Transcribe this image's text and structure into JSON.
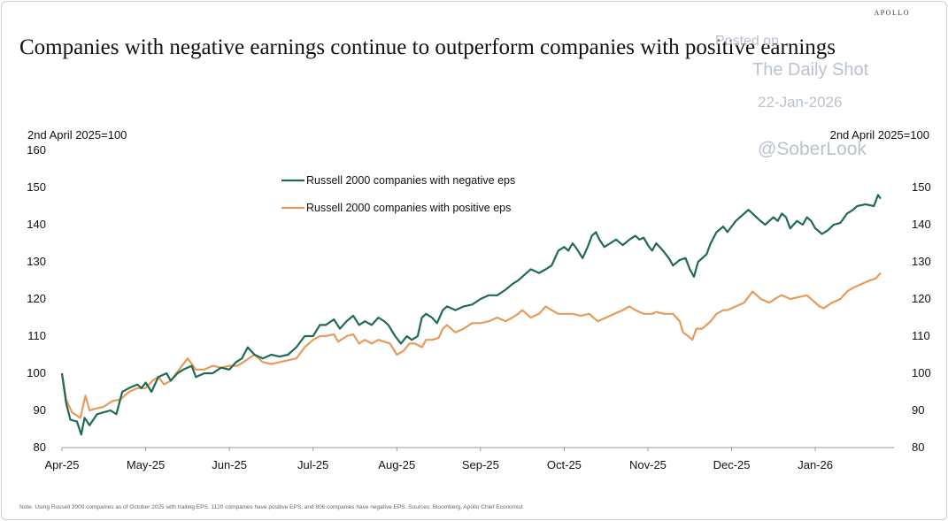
{
  "brand": "APOLLO",
  "title": "Companies with negative earnings continue to outperform companies with positive earnings",
  "watermark": {
    "line1": "Posted on",
    "line2": "The Daily Shot",
    "line3": "22-Jan-2026",
    "line4": "@SoberLook"
  },
  "note": "Note: Using Russell 2000 companies as of October 2025 with trailing EPS. 1120 companies have positive EPS, and 806 companies have negative EPS. Sources: Bloomberg, Apollo Chief Economist",
  "colors": {
    "negative": "#1e6b52",
    "positive": "#e79a5a",
    "axis": "#999999"
  },
  "chart_data": {
    "type": "line",
    "title": "Companies with negative earnings continue to outperform companies with positive earnings",
    "ylabel_left": "2nd April 2025=100",
    "ylabel_right": "2nd April 2025=100",
    "ylim": [
      80,
      160
    ],
    "yticks": [
      80,
      90,
      100,
      110,
      120,
      130,
      140,
      150,
      160
    ],
    "y2ticks": [
      80,
      90,
      100,
      110,
      120,
      130,
      140,
      150
    ],
    "xlim": [
      0,
      9.94
    ],
    "xticks": [
      {
        "label": "Apr-25",
        "pos": 0
      },
      {
        "label": "May-25",
        "pos": 1
      },
      {
        "label": "Jun-25",
        "pos": 2
      },
      {
        "label": "Jul-25",
        "pos": 3
      },
      {
        "label": "Aug-25",
        "pos": 4
      },
      {
        "label": "Sep-25",
        "pos": 5
      },
      {
        "label": "Oct-25",
        "pos": 6
      },
      {
        "label": "Nov-25",
        "pos": 7
      },
      {
        "label": "Dec-25",
        "pos": 8
      },
      {
        "label": "Jan-26",
        "pos": 9
      }
    ],
    "legend_position": "top-center",
    "series": [
      {
        "name": "Russell 2000 companies with negative eps",
        "color": "#1e6b52",
        "points": [
          [
            0,
            100
          ],
          [
            0.05,
            92
          ],
          [
            0.1,
            87.5
          ],
          [
            0.18,
            87
          ],
          [
            0.23,
            83.5
          ],
          [
            0.27,
            88
          ],
          [
            0.33,
            86
          ],
          [
            0.42,
            89
          ],
          [
            0.5,
            89.5
          ],
          [
            0.58,
            90
          ],
          [
            0.65,
            89
          ],
          [
            0.72,
            95
          ],
          [
            0.8,
            96
          ],
          [
            0.9,
            97
          ],
          [
            0.95,
            96
          ],
          [
            1.0,
            97.5
          ],
          [
            1.07,
            95
          ],
          [
            1.15,
            99
          ],
          [
            1.25,
            100
          ],
          [
            1.3,
            98
          ],
          [
            1.38,
            100
          ],
          [
            1.45,
            101
          ],
          [
            1.55,
            102
          ],
          [
            1.6,
            99
          ],
          [
            1.7,
            100
          ],
          [
            1.8,
            100
          ],
          [
            1.9,
            101.5
          ],
          [
            2.0,
            101
          ],
          [
            2.08,
            103
          ],
          [
            2.15,
            104
          ],
          [
            2.22,
            107
          ],
          [
            2.3,
            105
          ],
          [
            2.4,
            104
          ],
          [
            2.5,
            105
          ],
          [
            2.6,
            104.5
          ],
          [
            2.7,
            105
          ],
          [
            2.8,
            107
          ],
          [
            2.9,
            110
          ],
          [
            3.0,
            110
          ],
          [
            3.08,
            113
          ],
          [
            3.15,
            113
          ],
          [
            3.25,
            114.5
          ],
          [
            3.32,
            112
          ],
          [
            3.4,
            114
          ],
          [
            3.48,
            115.5
          ],
          [
            3.55,
            113
          ],
          [
            3.62,
            114
          ],
          [
            3.7,
            113
          ],
          [
            3.78,
            115
          ],
          [
            3.85,
            114
          ],
          [
            3.9,
            113
          ],
          [
            3.98,
            110
          ],
          [
            4.05,
            108
          ],
          [
            4.12,
            110
          ],
          [
            4.18,
            109
          ],
          [
            4.25,
            110
          ],
          [
            4.3,
            115
          ],
          [
            4.35,
            116
          ],
          [
            4.42,
            115
          ],
          [
            4.48,
            113.5
          ],
          [
            4.55,
            117
          ],
          [
            4.6,
            118
          ],
          [
            4.7,
            117
          ],
          [
            4.8,
            118
          ],
          [
            4.9,
            118.5
          ],
          [
            5.0,
            120
          ],
          [
            5.1,
            121
          ],
          [
            5.2,
            121
          ],
          [
            5.3,
            122.5
          ],
          [
            5.38,
            124
          ],
          [
            5.45,
            125
          ],
          [
            5.5,
            126
          ],
          [
            5.6,
            128
          ],
          [
            5.7,
            127
          ],
          [
            5.78,
            128
          ],
          [
            5.85,
            129
          ],
          [
            5.93,
            133
          ],
          [
            6.0,
            134
          ],
          [
            6.05,
            133
          ],
          [
            6.1,
            135
          ],
          [
            6.15,
            133.5
          ],
          [
            6.22,
            131
          ],
          [
            6.28,
            134
          ],
          [
            6.33,
            137
          ],
          [
            6.38,
            138
          ],
          [
            6.42,
            136
          ],
          [
            6.48,
            134
          ],
          [
            6.55,
            135
          ],
          [
            6.62,
            136
          ],
          [
            6.7,
            134.5
          ],
          [
            6.78,
            136
          ],
          [
            6.85,
            137
          ],
          [
            6.9,
            136
          ],
          [
            6.95,
            136.5
          ],
          [
            7.0,
            134.5
          ],
          [
            7.05,
            133
          ],
          [
            7.1,
            135
          ],
          [
            7.18,
            133
          ],
          [
            7.25,
            131
          ],
          [
            7.3,
            129
          ],
          [
            7.38,
            130.5
          ],
          [
            7.45,
            131
          ],
          [
            7.5,
            128
          ],
          [
            7.55,
            126
          ],
          [
            7.6,
            130
          ],
          [
            7.7,
            132
          ],
          [
            7.75,
            135
          ],
          [
            7.82,
            138
          ],
          [
            7.9,
            139.5
          ],
          [
            7.95,
            138
          ],
          [
            8.05,
            141
          ],
          [
            8.15,
            143
          ],
          [
            8.2,
            144
          ],
          [
            8.25,
            143
          ],
          [
            8.32,
            141.5
          ],
          [
            8.4,
            140
          ],
          [
            8.5,
            142
          ],
          [
            8.55,
            141
          ],
          [
            8.6,
            143
          ],
          [
            8.65,
            142
          ],
          [
            8.7,
            139
          ],
          [
            8.78,
            141
          ],
          [
            8.85,
            140
          ],
          [
            8.9,
            142
          ],
          [
            8.95,
            141
          ],
          [
            9.0,
            139
          ],
          [
            9.08,
            137.5
          ],
          [
            9.15,
            138.5
          ],
          [
            9.22,
            140
          ],
          [
            9.3,
            140.5
          ],
          [
            9.38,
            143
          ],
          [
            9.45,
            144
          ],
          [
            9.5,
            145
          ],
          [
            9.6,
            145.5
          ],
          [
            9.7,
            145
          ],
          [
            9.75,
            148
          ],
          [
            9.78,
            147
          ]
        ]
      },
      {
        "name": "Russell 2000 companies with positive eps",
        "color": "#e79a5a",
        "points": [
          [
            0,
            100
          ],
          [
            0.05,
            93
          ],
          [
            0.12,
            89.5
          ],
          [
            0.22,
            88
          ],
          [
            0.28,
            94
          ],
          [
            0.33,
            90
          ],
          [
            0.4,
            90.5
          ],
          [
            0.5,
            91
          ],
          [
            0.6,
            92.5
          ],
          [
            0.7,
            93
          ],
          [
            0.8,
            95
          ],
          [
            0.9,
            96
          ],
          [
            1.0,
            96
          ],
          [
            1.08,
            98
          ],
          [
            1.15,
            99
          ],
          [
            1.22,
            97
          ],
          [
            1.3,
            98
          ],
          [
            1.4,
            101
          ],
          [
            1.5,
            104
          ],
          [
            1.6,
            101
          ],
          [
            1.7,
            101
          ],
          [
            1.8,
            102
          ],
          [
            1.9,
            101.5
          ],
          [
            2.0,
            102
          ],
          [
            2.1,
            102
          ],
          [
            2.2,
            103.5
          ],
          [
            2.3,
            105
          ],
          [
            2.4,
            103
          ],
          [
            2.5,
            102.5
          ],
          [
            2.6,
            103
          ],
          [
            2.7,
            103.5
          ],
          [
            2.8,
            104
          ],
          [
            2.9,
            107
          ],
          [
            3.0,
            109
          ],
          [
            3.08,
            110
          ],
          [
            3.15,
            110
          ],
          [
            3.25,
            110.5
          ],
          [
            3.3,
            108.5
          ],
          [
            3.4,
            110
          ],
          [
            3.48,
            110.5
          ],
          [
            3.55,
            108
          ],
          [
            3.62,
            109
          ],
          [
            3.7,
            108
          ],
          [
            3.78,
            109
          ],
          [
            3.85,
            108.5
          ],
          [
            3.92,
            108
          ],
          [
            4.0,
            105
          ],
          [
            4.08,
            106
          ],
          [
            4.15,
            108
          ],
          [
            4.22,
            108
          ],
          [
            4.3,
            107
          ],
          [
            4.35,
            109
          ],
          [
            4.42,
            109
          ],
          [
            4.5,
            109.5
          ],
          [
            4.55,
            112
          ],
          [
            4.6,
            113
          ],
          [
            4.7,
            111
          ],
          [
            4.8,
            112
          ],
          [
            4.9,
            113.5
          ],
          [
            5.0,
            113.5
          ],
          [
            5.1,
            114
          ],
          [
            5.2,
            115
          ],
          [
            5.3,
            114
          ],
          [
            5.38,
            115
          ],
          [
            5.45,
            116
          ],
          [
            5.5,
            117
          ],
          [
            5.6,
            115
          ],
          [
            5.7,
            116
          ],
          [
            5.78,
            118
          ],
          [
            5.85,
            117
          ],
          [
            5.93,
            116
          ],
          [
            6.0,
            116
          ],
          [
            6.1,
            116
          ],
          [
            6.2,
            115.5
          ],
          [
            6.3,
            116
          ],
          [
            6.4,
            114
          ],
          [
            6.5,
            115
          ],
          [
            6.6,
            116
          ],
          [
            6.7,
            117
          ],
          [
            6.78,
            118
          ],
          [
            6.85,
            117
          ],
          [
            6.95,
            116
          ],
          [
            7.05,
            116
          ],
          [
            7.1,
            116.5
          ],
          [
            7.2,
            116
          ],
          [
            7.3,
            116
          ],
          [
            7.38,
            114
          ],
          [
            7.42,
            111
          ],
          [
            7.48,
            110
          ],
          [
            7.53,
            109
          ],
          [
            7.58,
            112
          ],
          [
            7.65,
            112
          ],
          [
            7.75,
            114
          ],
          [
            7.82,
            116
          ],
          [
            7.9,
            117
          ],
          [
            7.95,
            117
          ],
          [
            8.05,
            118
          ],
          [
            8.15,
            119
          ],
          [
            8.25,
            122
          ],
          [
            8.3,
            121
          ],
          [
            8.35,
            120
          ],
          [
            8.45,
            119
          ],
          [
            8.55,
            120.5
          ],
          [
            8.6,
            121
          ],
          [
            8.7,
            120
          ],
          [
            8.8,
            120.5
          ],
          [
            8.9,
            121
          ],
          [
            9.0,
            119
          ],
          [
            9.05,
            118
          ],
          [
            9.1,
            117.5
          ],
          [
            9.2,
            119
          ],
          [
            9.3,
            120
          ],
          [
            9.38,
            122
          ],
          [
            9.45,
            123
          ],
          [
            9.55,
            124
          ],
          [
            9.65,
            125
          ],
          [
            9.72,
            125.5
          ],
          [
            9.78,
            127
          ]
        ]
      }
    ]
  }
}
